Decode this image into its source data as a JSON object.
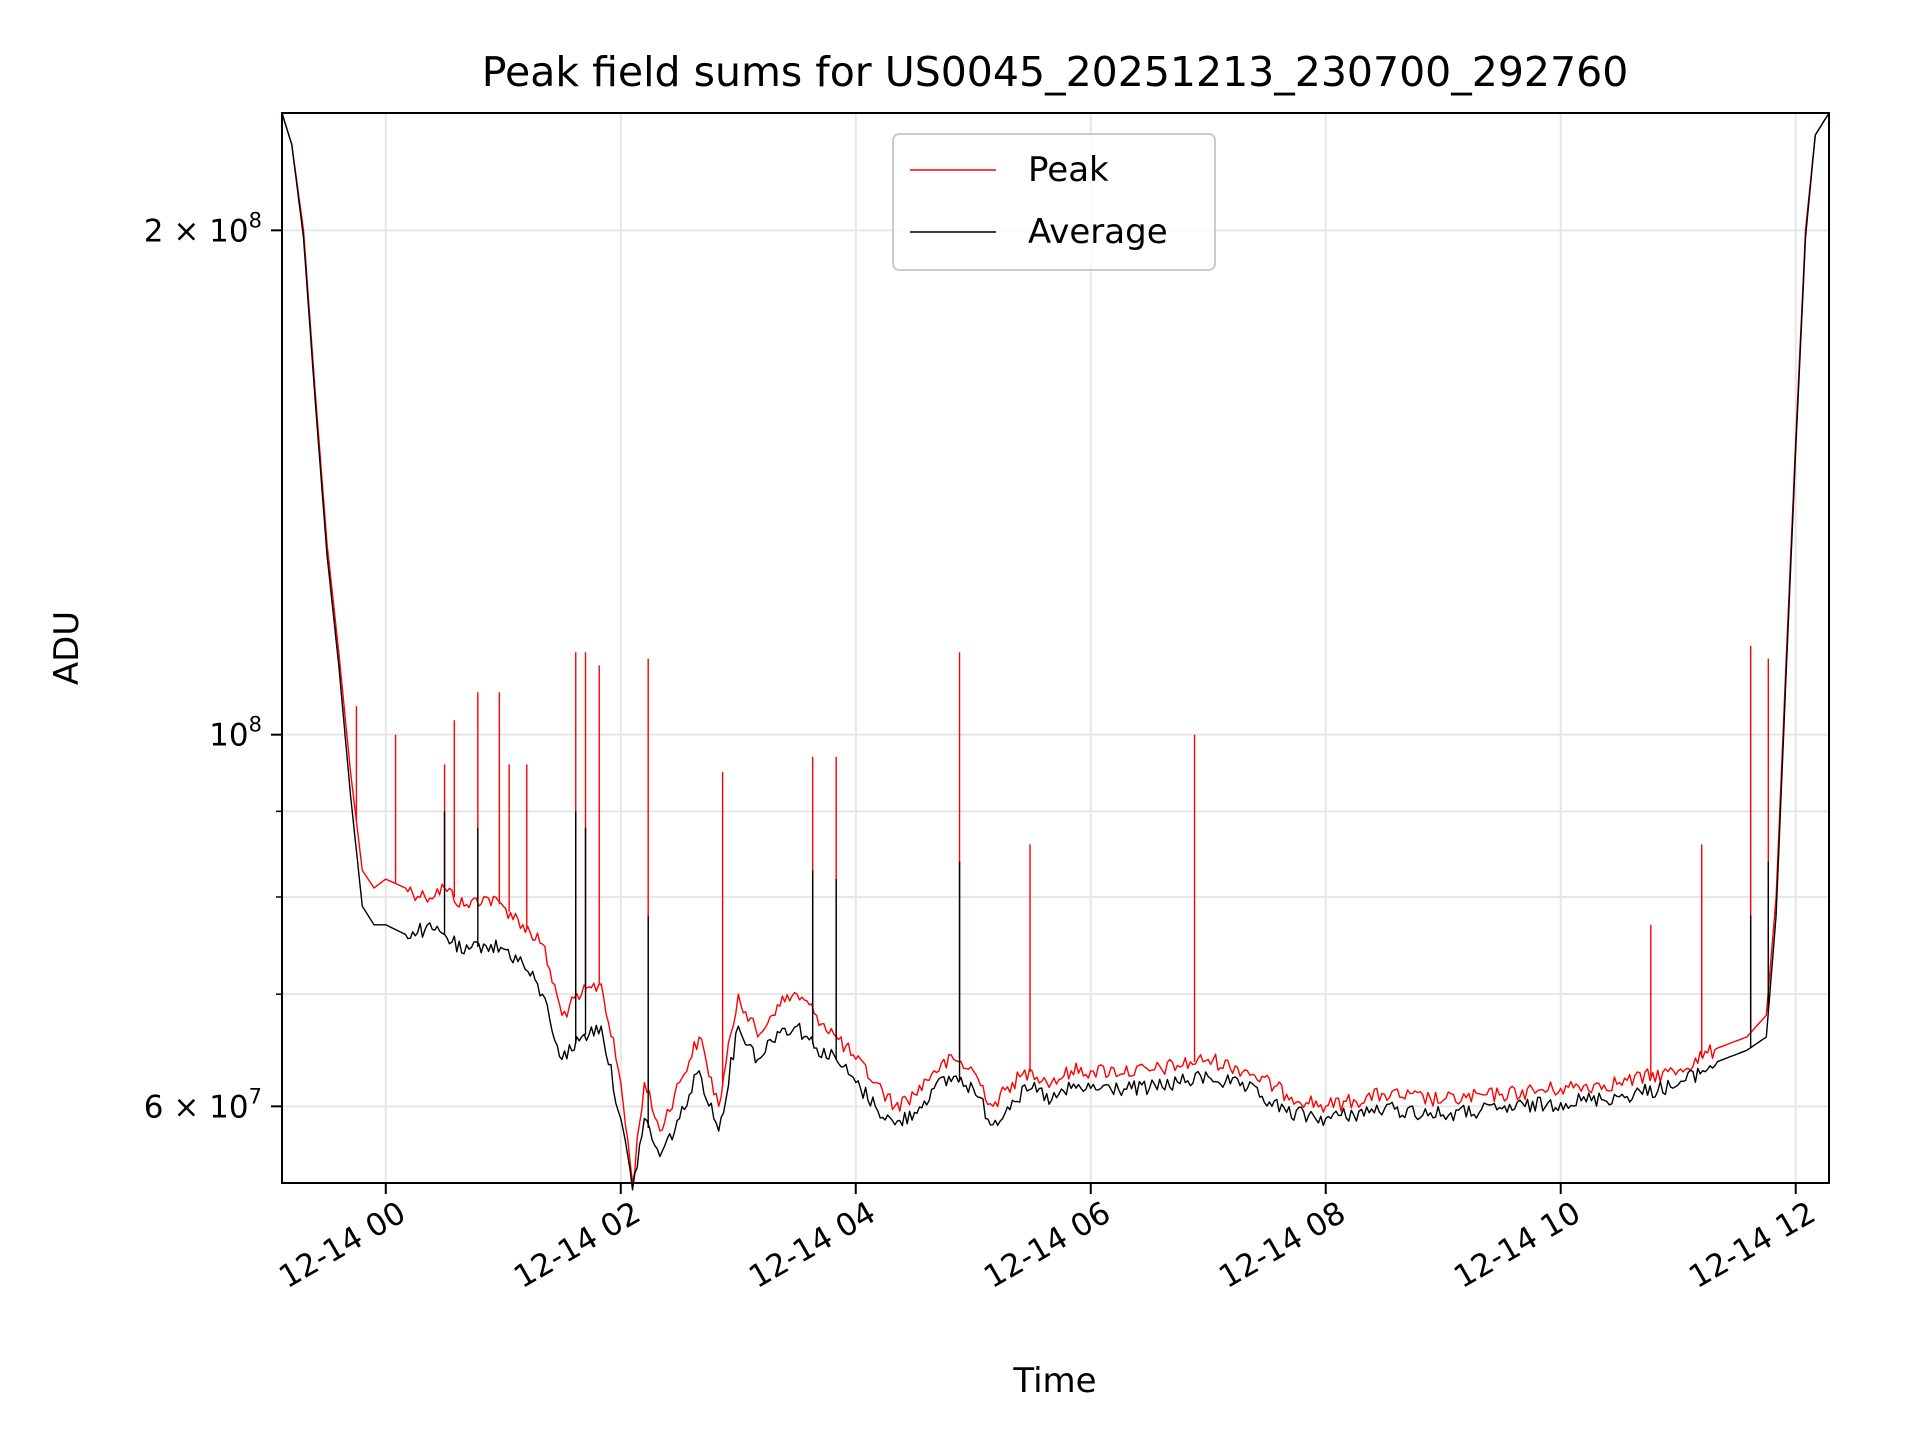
{
  "chart_data": {
    "type": "line",
    "title": "Peak field sums for US0045_20251213_230700_292760",
    "xlabel": "Time",
    "ylabel": "ADU",
    "y_scale": "log",
    "ylim": [
      54000000,
      235000000
    ],
    "xlim": [
      "2025-12-13 23:07",
      "2025-12-14 12:17"
    ],
    "x_ticks": [
      "12-14 00",
      "12-14 02",
      "12-14 04",
      "12-14 06",
      "12-14 08",
      "12-14 10",
      "12-14 12"
    ],
    "y_ticks": [
      {
        "label": "2 × 10⁸",
        "base": "2 × 10",
        "exp": "8"
      },
      {
        "label": "10⁸",
        "base": "10",
        "exp": "8"
      },
      {
        "label": "6 × 10⁷",
        "base": "6 × 10",
        "exp": "7"
      }
    ],
    "grid": true,
    "legend_placement": "upper-center",
    "series": [
      {
        "name": "Peak",
        "color": "#ff0000",
        "points": [
          [
            "2025-12-13 23:07",
            235000000
          ],
          [
            "2025-12-13 23:12",
            225000000
          ],
          [
            "2025-12-13 23:18",
            200000000
          ],
          [
            "2025-12-13 23:24",
            160000000
          ],
          [
            "2025-12-13 23:30",
            130000000
          ],
          [
            "2025-12-13 23:36",
            112000000
          ],
          [
            "2025-12-13 23:42",
            95000000
          ],
          [
            "2025-12-13 23:48",
            83000000
          ],
          [
            "2025-12-13 23:54",
            81000000
          ],
          [
            "2025-12-14 00:00",
            82000000
          ],
          [
            "2025-12-14 00:10",
            81000000
          ],
          [
            "2025-12-14 00:20",
            80000000
          ],
          [
            "2025-12-14 00:30",
            81000000
          ],
          [
            "2025-12-14 00:40",
            79000000
          ],
          [
            "2025-12-14 00:50",
            80000000
          ],
          [
            "2025-12-14 01:00",
            79000000
          ],
          [
            "2025-12-14 01:10",
            77000000
          ],
          [
            "2025-12-14 01:20",
            75000000
          ],
          [
            "2025-12-14 01:30",
            68000000
          ],
          [
            "2025-12-14 01:40",
            70000000
          ],
          [
            "2025-12-14 01:50",
            71000000
          ],
          [
            "2025-12-14 02:00",
            62000000
          ],
          [
            "2025-12-14 02:06",
            54000000
          ],
          [
            "2025-12-14 02:12",
            62000000
          ],
          [
            "2025-12-14 02:20",
            58000000
          ],
          [
            "2025-12-14 02:30",
            62000000
          ],
          [
            "2025-12-14 02:40",
            66000000
          ],
          [
            "2025-12-14 02:50",
            60000000
          ],
          [
            "2025-12-14 03:00",
            70000000
          ],
          [
            "2025-12-14 03:10",
            66000000
          ],
          [
            "2025-12-14 03:20",
            69000000
          ],
          [
            "2025-12-14 03:30",
            70000000
          ],
          [
            "2025-12-14 03:40",
            68000000
          ],
          [
            "2025-12-14 03:50",
            66000000
          ],
          [
            "2025-12-14 04:00",
            64000000
          ],
          [
            "2025-12-14 04:10",
            62000000
          ],
          [
            "2025-12-14 04:20",
            60000000
          ],
          [
            "2025-12-14 04:30",
            61000000
          ],
          [
            "2025-12-14 04:40",
            63000000
          ],
          [
            "2025-12-14 04:50",
            64000000
          ],
          [
            "2025-12-14 05:00",
            63000000
          ],
          [
            "2025-12-14 05:10",
            60000000
          ],
          [
            "2025-12-14 05:20",
            62000000
          ],
          [
            "2025-12-14 05:30",
            63000000
          ],
          [
            "2025-12-14 05:40",
            62000000
          ],
          [
            "2025-12-14 05:50",
            63000000
          ],
          [
            "2025-12-14 06:00",
            63000000
          ],
          [
            "2025-12-14 06:30",
            63000000
          ],
          [
            "2025-12-14 07:00",
            64000000
          ],
          [
            "2025-12-14 07:20",
            63000000
          ],
          [
            "2025-12-14 07:40",
            61000000
          ],
          [
            "2025-12-14 08:00",
            60000000
          ],
          [
            "2025-12-14 08:30",
            61000000
          ],
          [
            "2025-12-14 09:00",
            60500000
          ],
          [
            "2025-12-14 09:30",
            61000000
          ],
          [
            "2025-12-14 10:00",
            61500000
          ],
          [
            "2025-12-14 10:30",
            62000000
          ],
          [
            "2025-12-14 11:00",
            63000000
          ],
          [
            "2025-12-14 11:20",
            65000000
          ],
          [
            "2025-12-14 11:35",
            66000000
          ],
          [
            "2025-12-14 11:45",
            68000000
          ],
          [
            "2025-12-14 11:50",
            80000000
          ],
          [
            "2025-12-14 11:55",
            110000000
          ],
          [
            "2025-12-14 12:00",
            150000000
          ],
          [
            "2025-12-14 12:05",
            200000000
          ],
          [
            "2025-12-14 12:10",
            228000000
          ],
          [
            "2025-12-14 12:17",
            235000000
          ]
        ],
        "spikes": [
          [
            "2025-12-13 23:45",
            104000000
          ],
          [
            "2025-12-14 00:05",
            100000000
          ],
          [
            "2025-12-14 00:30",
            96000000
          ],
          [
            "2025-12-14 00:35",
            102000000
          ],
          [
            "2025-12-14 00:47",
            106000000
          ],
          [
            "2025-12-14 00:58",
            106000000
          ],
          [
            "2025-12-14 01:03",
            96000000
          ],
          [
            "2025-12-14 01:12",
            96000000
          ],
          [
            "2025-12-14 01:37",
            112000000
          ],
          [
            "2025-12-14 01:42",
            112000000
          ],
          [
            "2025-12-14 01:49",
            110000000
          ],
          [
            "2025-12-14 02:14",
            111000000
          ],
          [
            "2025-12-14 02:52",
            95000000
          ],
          [
            "2025-12-14 03:38",
            97000000
          ],
          [
            "2025-12-14 03:50",
            97000000
          ],
          [
            "2025-12-14 04:53",
            112000000
          ],
          [
            "2025-12-14 05:29",
            86000000
          ],
          [
            "2025-12-14 06:53",
            100000000
          ],
          [
            "2025-12-14 10:46",
            77000000
          ],
          [
            "2025-12-14 11:12",
            86000000
          ],
          [
            "2025-12-14 11:37",
            113000000
          ],
          [
            "2025-12-14 11:46",
            111000000
          ]
        ]
      },
      {
        "name": "Average",
        "color": "#000000",
        "points": [
          [
            "2025-12-13 23:07",
            235000000
          ],
          [
            "2025-12-13 23:12",
            225000000
          ],
          [
            "2025-12-13 23:18",
            198000000
          ],
          [
            "2025-12-13 23:24",
            158000000
          ],
          [
            "2025-12-13 23:30",
            128000000
          ],
          [
            "2025-12-13 23:36",
            110000000
          ],
          [
            "2025-12-13 23:42",
            92000000
          ],
          [
            "2025-12-13 23:48",
            79000000
          ],
          [
            "2025-12-13 23:54",
            77000000
          ],
          [
            "2025-12-14 00:00",
            77000000
          ],
          [
            "2025-12-14 00:10",
            76000000
          ],
          [
            "2025-12-14 00:20",
            76500000
          ],
          [
            "2025-12-14 00:30",
            76000000
          ],
          [
            "2025-12-14 00:40",
            74000000
          ],
          [
            "2025-12-14 00:50",
            75000000
          ],
          [
            "2025-12-14 01:00",
            74500000
          ],
          [
            "2025-12-14 01:10",
            73000000
          ],
          [
            "2025-12-14 01:20",
            70000000
          ],
          [
            "2025-12-14 01:30",
            64000000
          ],
          [
            "2025-12-14 01:40",
            66000000
          ],
          [
            "2025-12-14 01:50",
            67000000
          ],
          [
            "2025-12-14 02:00",
            59000000
          ],
          [
            "2025-12-14 02:06",
            53500000
          ],
          [
            "2025-12-14 02:12",
            59000000
          ],
          [
            "2025-12-14 02:20",
            56000000
          ],
          [
            "2025-12-14 02:30",
            59000000
          ],
          [
            "2025-12-14 02:40",
            63000000
          ],
          [
            "2025-12-14 02:50",
            58000000
          ],
          [
            "2025-12-14 03:00",
            67000000
          ],
          [
            "2025-12-14 03:10",
            64000000
          ],
          [
            "2025-12-14 03:20",
            66500000
          ],
          [
            "2025-12-14 03:30",
            67000000
          ],
          [
            "2025-12-14 03:40",
            65000000
          ],
          [
            "2025-12-14 03:50",
            64000000
          ],
          [
            "2025-12-14 04:00",
            62000000
          ],
          [
            "2025-12-14 04:10",
            60000000
          ],
          [
            "2025-12-14 04:20",
            58500000
          ],
          [
            "2025-12-14 04:30",
            59500000
          ],
          [
            "2025-12-14 04:40",
            61500000
          ],
          [
            "2025-12-14 04:50",
            62500000
          ],
          [
            "2025-12-14 05:00",
            61500000
          ],
          [
            "2025-12-14 05:10",
            58500000
          ],
          [
            "2025-12-14 05:20",
            60500000
          ],
          [
            "2025-12-14 05:30",
            61500000
          ],
          [
            "2025-12-14 05:40",
            60500000
          ],
          [
            "2025-12-14 05:50",
            61500000
          ],
          [
            "2025-12-14 06:00",
            61500000
          ],
          [
            "2025-12-14 06:30",
            61500000
          ],
          [
            "2025-12-14 07:00",
            62500000
          ],
          [
            "2025-12-14 07:20",
            61500000
          ],
          [
            "2025-12-14 07:40",
            59500000
          ],
          [
            "2025-12-14 08:00",
            59000000
          ],
          [
            "2025-12-14 08:30",
            59800000
          ],
          [
            "2025-12-14 09:00",
            59300000
          ],
          [
            "2025-12-14 09:30",
            59800000
          ],
          [
            "2025-12-14 10:00",
            60300000
          ],
          [
            "2025-12-14 10:30",
            60800000
          ],
          [
            "2025-12-14 11:00",
            61800000
          ],
          [
            "2025-12-14 11:20",
            63800000
          ],
          [
            "2025-12-14 11:35",
            64800000
          ],
          [
            "2025-12-14 11:45",
            66000000
          ],
          [
            "2025-12-14 11:50",
            78000000
          ],
          [
            "2025-12-14 11:55",
            108000000
          ],
          [
            "2025-12-14 12:00",
            148000000
          ],
          [
            "2025-12-14 12:05",
            198000000
          ],
          [
            "2025-12-14 12:10",
            228000000
          ],
          [
            "2025-12-14 12:17",
            235000000
          ]
        ],
        "spikes": [
          [
            "2025-12-14 00:30",
            90000000
          ],
          [
            "2025-12-14 00:47",
            88000000
          ],
          [
            "2025-12-14 01:37",
            90000000
          ],
          [
            "2025-12-14 01:42",
            88000000
          ],
          [
            "2025-12-14 02:14",
            78000000
          ],
          [
            "2025-12-14 03:38",
            83000000
          ],
          [
            "2025-12-14 03:50",
            82000000
          ],
          [
            "2025-12-14 04:53",
            84000000
          ],
          [
            "2025-12-14 11:37",
            78000000
          ],
          [
            "2025-12-14 11:46",
            84000000
          ]
        ]
      }
    ]
  }
}
